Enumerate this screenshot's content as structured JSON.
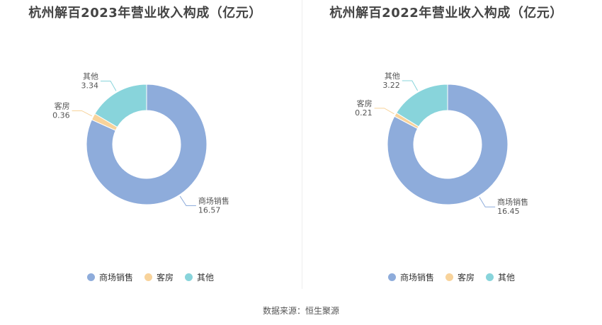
{
  "colors": {
    "商场销售": "#8eacdb",
    "客房": "#f8d39b",
    "其他": "#88d4db"
  },
  "chart_data": [
    {
      "type": "pie",
      "title": "杭州解百2023年营业收入构成（亿元）",
      "categories": [
        "商场销售",
        "客房",
        "其他"
      ],
      "values": [
        16.57,
        0.36,
        3.34
      ],
      "value_labels": [
        "16.57",
        "0.36",
        "3.34"
      ],
      "donut": true,
      "legend_position": "bottom"
    },
    {
      "type": "pie",
      "title": "杭州解百2022年营业收入构成（亿元）",
      "categories": [
        "商场销售",
        "客房",
        "其他"
      ],
      "values": [
        16.45,
        0.21,
        3.22
      ],
      "value_labels": [
        "16.45",
        "0.21",
        "3.22"
      ],
      "donut": true,
      "legend_position": "bottom"
    }
  ],
  "source": "数据来源：恒生聚源"
}
